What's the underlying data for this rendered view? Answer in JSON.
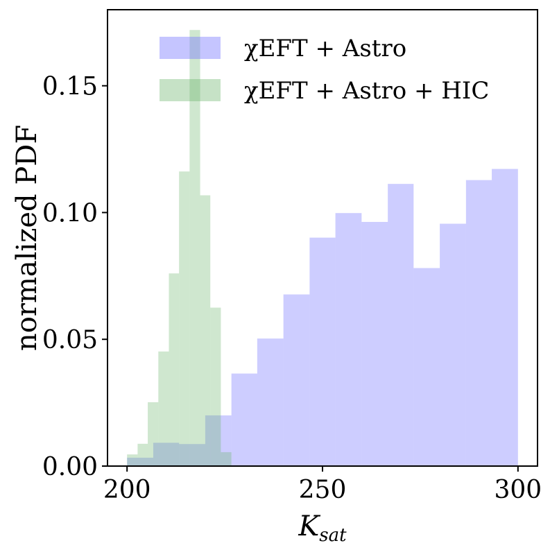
{
  "chart_data": {
    "type": "histogram",
    "xlabel": "K",
    "xlabel_subscript": "sat",
    "ylabel": "normalized PDF",
    "xlim": [
      195,
      305
    ],
    "ylim": [
      0,
      0.18
    ],
    "xticks": [
      "200",
      "250",
      "300"
    ],
    "yticks": [
      "0.00",
      "0.05",
      "0.10",
      "0.15"
    ],
    "grid": false,
    "legend_position": "top",
    "series": [
      {
        "name": "χEFT + Astro",
        "color": "#7b7bff",
        "opacity": 0.38,
        "bins": [
          {
            "x0": 200,
            "x1": 206.7,
            "y": 0.0033
          },
          {
            "x0": 206.7,
            "x1": 213.3,
            "y": 0.0092
          },
          {
            "x0": 213.3,
            "x1": 220,
            "y": 0.0087
          },
          {
            "x0": 220,
            "x1": 226.7,
            "y": 0.02
          },
          {
            "x0": 226.7,
            "x1": 233.3,
            "y": 0.0365
          },
          {
            "x0": 233.3,
            "x1": 240,
            "y": 0.0503
          },
          {
            "x0": 240,
            "x1": 246.7,
            "y": 0.0677
          },
          {
            "x0": 246.7,
            "x1": 253.3,
            "y": 0.0901
          },
          {
            "x0": 253.3,
            "x1": 260,
            "y": 0.0998
          },
          {
            "x0": 260,
            "x1": 266.7,
            "y": 0.0963
          },
          {
            "x0": 266.7,
            "x1": 273.3,
            "y": 0.1113
          },
          {
            "x0": 273.3,
            "x1": 280,
            "y": 0.0781
          },
          {
            "x0": 280,
            "x1": 286.7,
            "y": 0.0956
          },
          {
            "x0": 286.7,
            "x1": 293.3,
            "y": 0.1128
          },
          {
            "x0": 293.3,
            "x1": 300,
            "y": 0.1172
          }
        ]
      },
      {
        "name": "χEFT + Astro + HIC",
        "color": "#6ab46a",
        "opacity": 0.32,
        "bins": [
          {
            "x0": 200,
            "x1": 202.7,
            "y": 0.0046
          },
          {
            "x0": 202.7,
            "x1": 205.3,
            "y": 0.0088
          },
          {
            "x0": 205.3,
            "x1": 208,
            "y": 0.0252
          },
          {
            "x0": 208,
            "x1": 210.7,
            "y": 0.0452
          },
          {
            "x0": 210.7,
            "x1": 213.3,
            "y": 0.076
          },
          {
            "x0": 213.3,
            "x1": 216,
            "y": 0.1162
          },
          {
            "x0": 216,
            "x1": 218.7,
            "y": 0.172
          },
          {
            "x0": 218.7,
            "x1": 221.3,
            "y": 0.1068
          },
          {
            "x0": 221.3,
            "x1": 224,
            "y": 0.0625
          },
          {
            "x0": 224,
            "x1": 226.7,
            "y": 0.0055
          }
        ]
      }
    ]
  }
}
